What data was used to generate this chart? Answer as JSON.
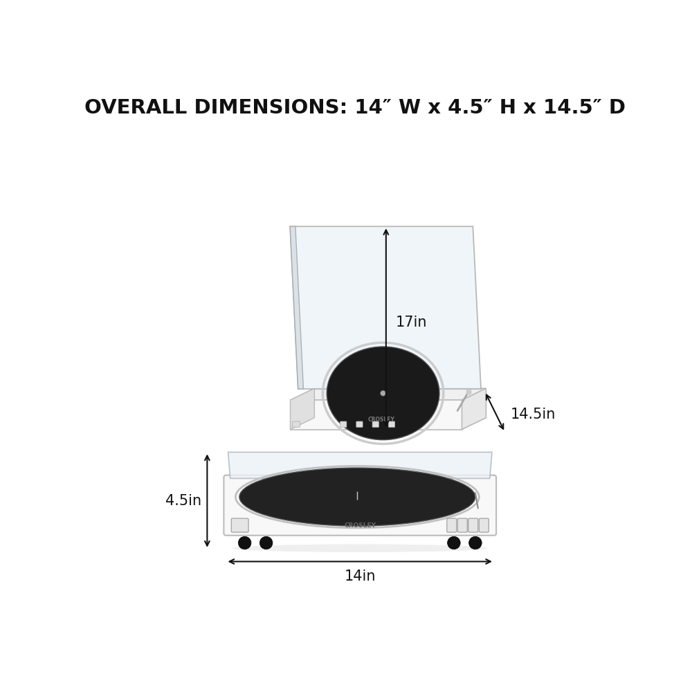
{
  "title": "OVERALL DIMENSIONS: 14″ W x 4.5″ H x 14.5″ D",
  "title_fontsize": 21,
  "title_fontweight": "bold",
  "background_color": "#ffffff",
  "text_color": "#111111",
  "annotation_color": "#111111",
  "annotation_fontsize": 15,
  "top_dim_vertical_label": "17in",
  "top_dim_diagonal_label": "14.5in",
  "bottom_dim_vertical_label": "4.5in",
  "bottom_dim_horizontal_label": "14in",
  "body_color": "#f8f8f8",
  "body_edge": "#bbbbbb",
  "lid_color_face": "#e8eef2",
  "lid_color_edge": "#aaaaaa",
  "platter_color": "#1a1a1a",
  "platter_edge": "#555555",
  "platter_rim_color": "#cccccc",
  "foot_color": "#111111",
  "button_color": "#e0e0e0",
  "button_edge": "#999999",
  "shadow_color": "#d8d8d8"
}
